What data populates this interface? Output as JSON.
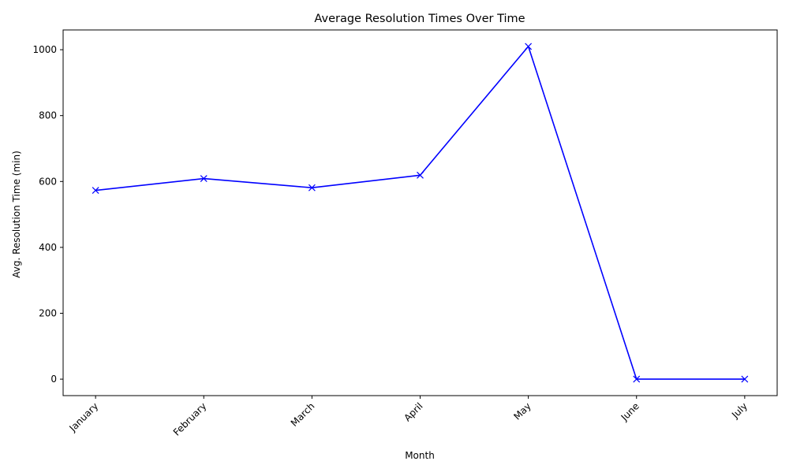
{
  "chart_data": {
    "type": "line",
    "title": "Average Resolution Times Over Time",
    "xlabel": "Month",
    "ylabel": "Avg. Resolution Time (min)",
    "categories": [
      "January",
      "February",
      "March",
      "April",
      "May",
      "June",
      "July"
    ],
    "series": [
      {
        "values": [
          573,
          609,
          581,
          619,
          1010,
          0,
          0
        ],
        "color": "#0000ff",
        "marker": "x"
      }
    ],
    "ylim": [
      -50,
      1060
    ],
    "yticks": [
      0,
      200,
      400,
      600,
      800,
      1000
    ],
    "grid": false,
    "legend": "none"
  }
}
